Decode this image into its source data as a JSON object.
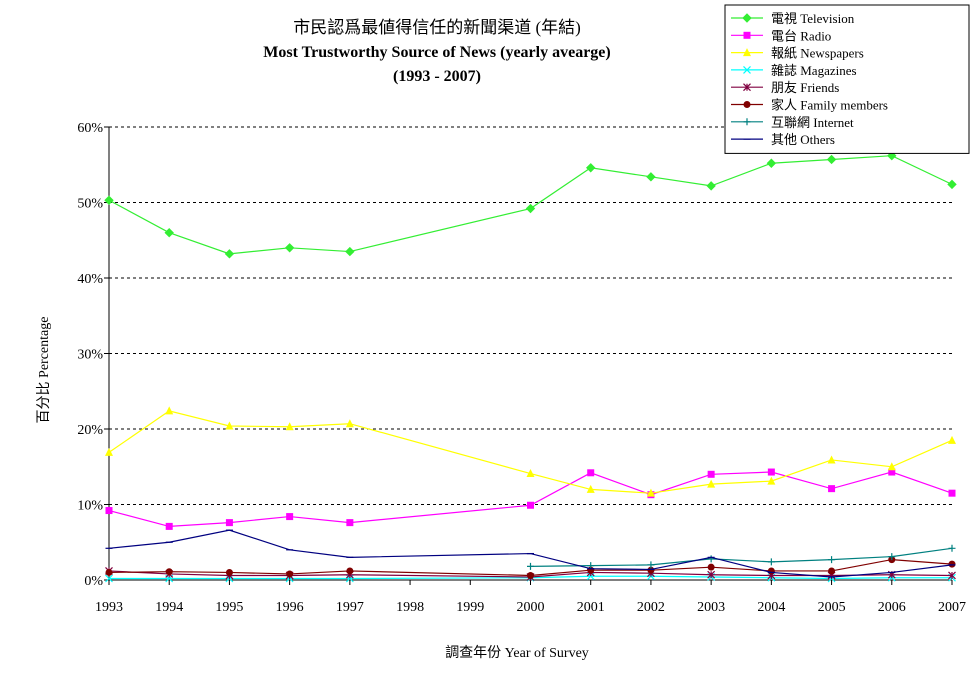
{
  "chart_data": {
    "type": "line",
    "title_lines": [
      "市民認爲最値得信任的新聞渠道 (年結)",
      "Most Trustworthy Source of News (yearly avearge)",
      "(1993 - 2007)"
    ],
    "xlabel": "調查年份 Year of Survey",
    "ylabel": "百分比 Percentage",
    "x": [
      1993,
      1994,
      1995,
      1996,
      1997,
      1998,
      1999,
      2000,
      2001,
      2002,
      2003,
      2004,
      2005,
      2006,
      2007
    ],
    "x_tick_labels": [
      "1993",
      "1994",
      "1995",
      "1996",
      "1997",
      "1998",
      "1999",
      "2000",
      "2001",
      "2002",
      "2003",
      "2004",
      "2005",
      "2006",
      "2007"
    ],
    "ylim": [
      0,
      60
    ],
    "y_ticks": [
      0,
      10,
      20,
      30,
      40,
      50,
      60
    ],
    "y_tick_labels": [
      "0%",
      "10%",
      "20%",
      "30%",
      "40%",
      "50%",
      "60%"
    ],
    "grid": "horizontal dashed",
    "legend_position": "top-right",
    "series": [
      {
        "name": "電視 Television",
        "color": "#33ee33",
        "marker": "diamond",
        "values": [
          50.3,
          46.0,
          43.2,
          44.0,
          43.5,
          null,
          null,
          49.2,
          54.6,
          53.4,
          52.2,
          55.2,
          55.7,
          56.2,
          52.4
        ]
      },
      {
        "name": "電台 Radio",
        "color": "#ff00ff",
        "marker": "square",
        "values": [
          9.2,
          7.1,
          7.6,
          8.4,
          7.6,
          null,
          null,
          9.9,
          14.2,
          11.3,
          14.0,
          14.3,
          12.1,
          14.3,
          11.5
        ]
      },
      {
        "name": "報紙 Newspapers",
        "color": "#ffff00",
        "marker": "triangle",
        "values": [
          16.9,
          22.4,
          20.4,
          20.3,
          20.7,
          null,
          null,
          14.1,
          12.0,
          11.5,
          12.7,
          13.1,
          15.9,
          15.0,
          18.5
        ]
      },
      {
        "name": "雜誌 Magazines",
        "color": "#00ffff",
        "marker": "x",
        "values": [
          0.2,
          0.2,
          0.2,
          0.2,
          0.2,
          null,
          null,
          0.3,
          0.5,
          0.5,
          0.4,
          0.3,
          0.2,
          0.3,
          0.3
        ]
      },
      {
        "name": "朋友 Friends",
        "color": "#800040",
        "marker": "star",
        "values": [
          1.2,
          0.8,
          0.6,
          0.6,
          0.7,
          null,
          null,
          0.4,
          1.0,
          0.9,
          0.7,
          0.6,
          0.6,
          0.7,
          0.6
        ]
      },
      {
        "name": "家人 Family members",
        "color": "#800000",
        "marker": "circle",
        "values": [
          1.0,
          1.1,
          1.0,
          0.8,
          1.2,
          null,
          null,
          0.6,
          1.3,
          1.3,
          1.7,
          1.2,
          1.2,
          2.7,
          2.1
        ]
      },
      {
        "name": "互聯網 Internet",
        "color": "#008080",
        "marker": "plus",
        "values": [
          null,
          null,
          null,
          null,
          null,
          null,
          null,
          1.8,
          1.9,
          2.0,
          2.8,
          2.4,
          2.7,
          3.1,
          4.2
        ]
      },
      {
        "name": "其他 Others",
        "color": "#000080",
        "marker": "dash",
        "values": [
          4.2,
          5.0,
          6.6,
          4.0,
          3.0,
          null,
          null,
          3.5,
          1.5,
          1.4,
          3.0,
          1.0,
          0.4,
          1.0,
          2.0
        ]
      }
    ]
  }
}
